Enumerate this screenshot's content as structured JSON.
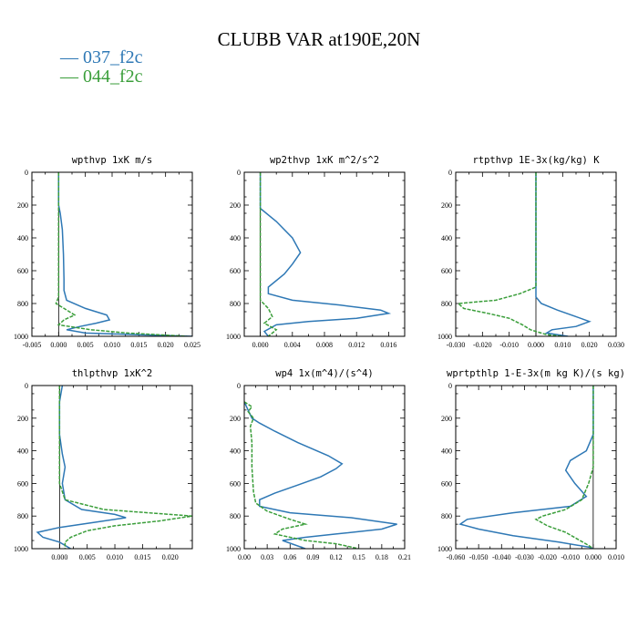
{
  "figure": {
    "title": "CLUBB VAR at190E,20N",
    "legend": [
      {
        "label": "— 037_f2c",
        "color": "#2E78B5"
      },
      {
        "label": "— 044_f2c",
        "color": "#3A9E3A"
      }
    ]
  },
  "chart_data": [
    {
      "type": "line",
      "title": "wpthvp   1xK  m/s",
      "xlim": [
        -0.005,
        0.025
      ],
      "ylim": [
        1000,
        0
      ],
      "xticks": [
        -0.005,
        0.0,
        0.005,
        0.01,
        0.015,
        0.02,
        0.025
      ],
      "xticklabels": [
        "-0.005",
        "0.000",
        "0.005",
        "0.010",
        "0.015",
        "0.020",
        "0.025"
      ],
      "yticks": [
        0,
        200,
        400,
        600,
        800,
        1000
      ],
      "series": [
        {
          "name": "037_f2c",
          "color": "#2E78B5",
          "dash": false,
          "points": [
            [
              0.0,
              0
            ],
            [
              0.0,
              200
            ],
            [
              0.0003,
              250
            ],
            [
              0.0007,
              350
            ],
            [
              0.0009,
              500
            ],
            [
              0.001,
              650
            ],
            [
              0.001,
              720
            ],
            [
              0.0015,
              780
            ],
            [
              0.005,
              830
            ],
            [
              0.009,
              870
            ],
            [
              0.0095,
              900
            ],
            [
              0.007,
              920
            ],
            [
              0.004,
              940
            ],
            [
              0.0015,
              960
            ],
            [
              0.005,
              980
            ],
            [
              0.015,
              990
            ],
            [
              0.025,
              1000
            ]
          ]
        },
        {
          "name": "044_f2c",
          "color": "#3A9E3A",
          "dash": true,
          "points": [
            [
              0.0,
              0
            ],
            [
              0.0,
              400
            ],
            [
              0.0,
              600
            ],
            [
              0.0,
              760
            ],
            [
              -0.0005,
              800
            ],
            [
              0.0005,
              820
            ],
            [
              0.002,
              850
            ],
            [
              0.003,
              870
            ],
            [
              0.001,
              900
            ],
            [
              0.0,
              930
            ],
            [
              0.006,
              960
            ],
            [
              0.013,
              980
            ],
            [
              0.024,
              1000
            ]
          ]
        }
      ]
    },
    {
      "type": "line",
      "title": "wp2thvp   1xK  m^2/s^2",
      "xlim": [
        -0.002,
        0.018
      ],
      "ylim": [
        1000,
        0
      ],
      "xticks": [
        0.0,
        0.004,
        0.008,
        0.012,
        0.016
      ],
      "xticklabels": [
        "0.000",
        "0.004",
        "0.008",
        "0.012",
        "0.016"
      ],
      "yticks": [
        0,
        200,
        400,
        600,
        800,
        1000
      ],
      "series": [
        {
          "name": "037_f2c",
          "color": "#2E78B5",
          "dash": false,
          "points": [
            [
              0.0,
              0
            ],
            [
              0.0,
              220
            ],
            [
              0.002,
              300
            ],
            [
              0.004,
              400
            ],
            [
              0.005,
              490
            ],
            [
              0.004,
              560
            ],
            [
              0.003,
              620
            ],
            [
              0.001,
              700
            ],
            [
              0.001,
              740
            ],
            [
              0.004,
              780
            ],
            [
              0.01,
              810
            ],
            [
              0.015,
              840
            ],
            [
              0.016,
              860
            ],
            [
              0.012,
              890
            ],
            [
              0.006,
              910
            ],
            [
              0.002,
              930
            ],
            [
              0.0005,
              970
            ],
            [
              0.001,
              1000
            ]
          ]
        },
        {
          "name": "044_f2c",
          "color": "#3A9E3A",
          "dash": true,
          "points": [
            [
              0.0,
              0
            ],
            [
              0.0,
              500
            ],
            [
              0.0,
              780
            ],
            [
              0.001,
              830
            ],
            [
              0.0015,
              880
            ],
            [
              0.0005,
              920
            ],
            [
              0.002,
              960
            ],
            [
              0.001,
              1000
            ]
          ]
        }
      ]
    },
    {
      "type": "line",
      "title": "rtpthvp   1E-3x(kg/kg) K",
      "xlim": [
        -0.03,
        0.03
      ],
      "ylim": [
        1000,
        0
      ],
      "xticks": [
        -0.03,
        -0.02,
        -0.01,
        0.0,
        0.01,
        0.02,
        0.03
      ],
      "xticklabels": [
        "-0.030",
        "-0.020",
        "-0.010",
        "0.000",
        "0.010",
        "0.020",
        "0.030"
      ],
      "yticks": [
        0,
        200,
        400,
        600,
        800,
        1000
      ],
      "series": [
        {
          "name": "037_f2c",
          "color": "#2E78B5",
          "dash": false,
          "points": [
            [
              0.0,
              0
            ],
            [
              0.0,
              500
            ],
            [
              0.0,
              700
            ],
            [
              0.0,
              760
            ],
            [
              0.002,
              800
            ],
            [
              0.008,
              840
            ],
            [
              0.015,
              880
            ],
            [
              0.02,
              910
            ],
            [
              0.015,
              940
            ],
            [
              0.006,
              960
            ],
            [
              0.004,
              980
            ],
            [
              0.012,
              1000
            ]
          ]
        },
        {
          "name": "044_f2c",
          "color": "#3A9E3A",
          "dash": true,
          "points": [
            [
              0.0,
              0
            ],
            [
              0.0,
              500
            ],
            [
              0.0,
              700
            ],
            [
              -0.006,
              740
            ],
            [
              -0.015,
              780
            ],
            [
              -0.029,
              800
            ],
            [
              -0.027,
              830
            ],
            [
              -0.018,
              860
            ],
            [
              -0.01,
              890
            ],
            [
              -0.005,
              930
            ],
            [
              -0.002,
              960
            ],
            [
              0.004,
              990
            ],
            [
              0.01,
              1000
            ]
          ]
        }
      ]
    },
    {
      "type": "line",
      "title": "thlpthvp   1xK^2",
      "xlim": [
        -0.005,
        0.024
      ],
      "ylim": [
        1000,
        0
      ],
      "xticks": [
        0.0,
        0.005,
        0.01,
        0.015,
        0.02
      ],
      "xticklabels": [
        "0.000",
        "0.005",
        "0.010",
        "0.015",
        "0.020"
      ],
      "yticks": [
        0,
        200,
        400,
        600,
        800,
        1000
      ],
      "series": [
        {
          "name": "037_f2c",
          "color": "#2E78B5",
          "dash": false,
          "points": [
            [
              0.0005,
              0
            ],
            [
              0.0,
              100
            ],
            [
              0.0,
              300
            ],
            [
              0.0005,
              420
            ],
            [
              0.001,
              500
            ],
            [
              0.0005,
              600
            ],
            [
              0.001,
              700
            ],
            [
              0.004,
              760
            ],
            [
              0.01,
              790
            ],
            [
              0.012,
              810
            ],
            [
              0.006,
              840
            ],
            [
              0.0,
              870
            ],
            [
              -0.004,
              900
            ],
            [
              -0.003,
              930
            ],
            [
              0.0,
              960
            ],
            [
              0.002,
              1000
            ]
          ]
        },
        {
          "name": "044_f2c",
          "color": "#3A9E3A",
          "dash": true,
          "points": [
            [
              0.0,
              0
            ],
            [
              0.0,
              300
            ],
            [
              0.0,
              600
            ],
            [
              0.001,
              700
            ],
            [
              0.008,
              760
            ],
            [
              0.02,
              790
            ],
            [
              0.024,
              800
            ],
            [
              0.018,
              830
            ],
            [
              0.01,
              860
            ],
            [
              0.005,
              890
            ],
            [
              0.002,
              930
            ],
            [
              0.001,
              960
            ],
            [
              0.001,
              1000
            ]
          ]
        }
      ]
    },
    {
      "type": "line",
      "title": "wp4   1x(m^4)/(s^4)",
      "xlim": [
        0.0,
        0.21
      ],
      "ylim": [
        1000,
        0
      ],
      "xticks": [
        0.0,
        0.03,
        0.06,
        0.09,
        0.12,
        0.15,
        0.18,
        0.21
      ],
      "xticklabels": [
        "0.00",
        "0.03",
        "0.06",
        "0.09",
        "0.12",
        "0.15",
        "0.18",
        "0.21"
      ],
      "yticks": [
        0,
        200,
        400,
        600,
        800,
        1000
      ],
      "series": [
        {
          "name": "037_f2c",
          "color": "#2E78B5",
          "dash": false,
          "points": [
            [
              0.0,
              100
            ],
            [
              0.005,
              150
            ],
            [
              0.01,
              200
            ],
            [
              0.02,
              230
            ],
            [
              0.04,
              280
            ],
            [
              0.07,
              350
            ],
            [
              0.11,
              430
            ],
            [
              0.128,
              480
            ],
            [
              0.12,
              510
            ],
            [
              0.1,
              560
            ],
            [
              0.07,
              610
            ],
            [
              0.04,
              660
            ],
            [
              0.02,
              700
            ],
            [
              0.02,
              740
            ],
            [
              0.06,
              780
            ],
            [
              0.14,
              810
            ],
            [
              0.2,
              850
            ],
            [
              0.18,
              880
            ],
            [
              0.12,
              910
            ],
            [
              0.08,
              930
            ],
            [
              0.05,
              950
            ],
            [
              0.08,
              1000
            ]
          ]
        },
        {
          "name": "044_f2c",
          "color": "#3A9E3A",
          "dash": true,
          "points": [
            [
              0.0,
              100
            ],
            [
              0.01,
              130
            ],
            [
              0.005,
              160
            ],
            [
              0.012,
              200
            ],
            [
              0.008,
              250
            ],
            [
              0.01,
              350
            ],
            [
              0.01,
              500
            ],
            [
              0.012,
              650
            ],
            [
              0.015,
              720
            ],
            [
              0.03,
              770
            ],
            [
              0.06,
              820
            ],
            [
              0.08,
              850
            ],
            [
              0.05,
              880
            ],
            [
              0.04,
              910
            ],
            [
              0.06,
              930
            ],
            [
              0.08,
              950
            ],
            [
              0.12,
              970
            ],
            [
              0.15,
              1000
            ]
          ]
        }
      ]
    },
    {
      "type": "line",
      "title": "wprtpthlp   1-E-3x(m kg K)/(s kg)",
      "xlim": [
        -0.06,
        0.01
      ],
      "ylim": [
        1000,
        0
      ],
      "xticks": [
        -0.06,
        -0.05,
        -0.04,
        -0.03,
        -0.02,
        -0.01,
        0.0,
        0.01
      ],
      "xticklabels": [
        "-0.060",
        "-0.050",
        "-0.040",
        "-0.030",
        "-0.020",
        "-0.010",
        "0.000",
        "0.010"
      ],
      "yticks": [
        0,
        200,
        400,
        600,
        800,
        1000
      ],
      "series": [
        {
          "name": "037_f2c",
          "color": "#2E78B5",
          "dash": false,
          "points": [
            [
              0.0,
              0
            ],
            [
              0.0,
              200
            ],
            [
              0.0,
              300
            ],
            [
              -0.003,
              400
            ],
            [
              -0.01,
              460
            ],
            [
              -0.012,
              520
            ],
            [
              -0.008,
              600
            ],
            [
              -0.003,
              680
            ],
            [
              -0.01,
              740
            ],
            [
              -0.035,
              780
            ],
            [
              -0.055,
              820
            ],
            [
              -0.058,
              850
            ],
            [
              -0.05,
              880
            ],
            [
              -0.035,
              920
            ],
            [
              -0.015,
              960
            ],
            [
              -0.002,
              990
            ],
            [
              0.0,
              1000
            ]
          ]
        },
        {
          "name": "044_f2c",
          "color": "#3A9E3A",
          "dash": true,
          "points": [
            [
              0.0,
              0
            ],
            [
              0.0,
              300
            ],
            [
              0.0,
              500
            ],
            [
              -0.002,
              600
            ],
            [
              -0.005,
              700
            ],
            [
              -0.012,
              760
            ],
            [
              -0.022,
              800
            ],
            [
              -0.025,
              820
            ],
            [
              -0.02,
              860
            ],
            [
              -0.012,
              900
            ],
            [
              -0.007,
              940
            ],
            [
              -0.002,
              980
            ],
            [
              0.0,
              1000
            ]
          ]
        }
      ]
    }
  ]
}
